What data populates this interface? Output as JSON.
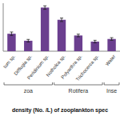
{
  "chart_data": {
    "type": "bar",
    "title": "density (No. /L) of zooplankton spec",
    "categories": [
      "tum sp.",
      "Difflugia sp.",
      "Peridinium sp.",
      "Notholca sp.",
      "Polyarthra sp.",
      "Trichocerca sp.",
      "Water"
    ],
    "values": [
      20,
      12,
      50,
      36,
      18,
      11,
      14
    ],
    "errors": [
      2,
      1.5,
      2,
      2,
      1.5,
      1.5,
      1.5
    ],
    "color": "#6b3f8f",
    "ylim": [
      0,
      55
    ],
    "tick_labels": "x",
    "groups": [
      {
        "label": "zoa",
        "start": 0,
        "end": 2
      },
      {
        "label": "Rotifera",
        "start": 3,
        "end": 5
      },
      {
        "label": "Inse",
        "start": 6,
        "end": 6
      }
    ]
  }
}
